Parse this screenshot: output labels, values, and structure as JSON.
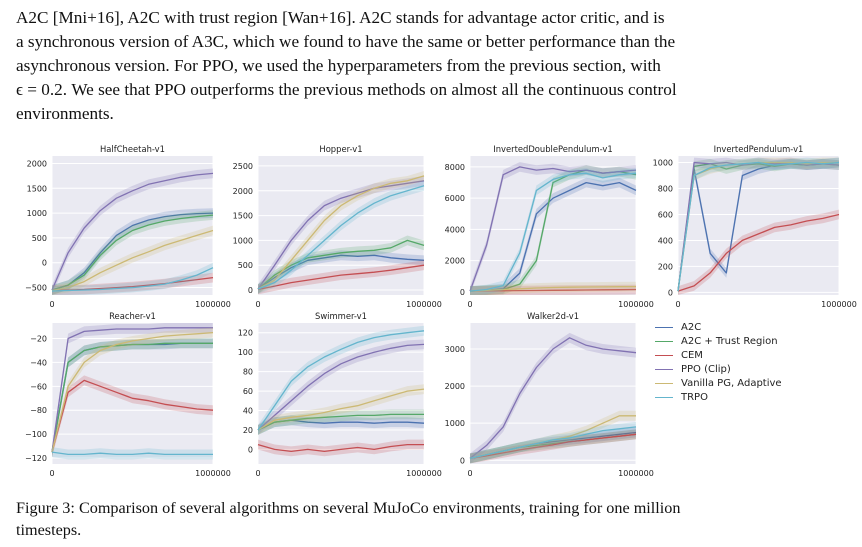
{
  "paragraph": {
    "lines": [
      "A2C [Mni+16], A2C with trust region [Wan+16]. A2C stands for advantage actor critic, and is",
      "a synchronous version of A3C, which we found to have the same or better performance than the",
      "asynchronous version. For PPO, we used the hyperparameters from the previous section, with",
      "ϵ = 0.2. We see that PPO outperforms the previous methods on almost all the continuous control",
      "environments."
    ]
  },
  "caption": {
    "lines": [
      "Figure 3: Comparison of several algorithms on several MuJoCo environments, training for one million",
      "timesteps."
    ]
  },
  "legend": [
    {
      "name": "A2C",
      "color": "#4c72b0"
    },
    {
      "name": "A2C + Trust Region",
      "color": "#55a868"
    },
    {
      "name": "CEM",
      "color": "#c44e52"
    },
    {
      "name": "PPO (Clip)",
      "color": "#8172b2"
    },
    {
      "name": "Vanilla PG, Adaptive",
      "color": "#ccb974"
    },
    {
      "name": "TRPO",
      "color": "#64b5cd"
    }
  ],
  "chart_data": [
    {
      "type": "line",
      "title": "HalfCheetah-v1",
      "x": [
        0,
        100000,
        200000,
        300000,
        400000,
        500000,
        600000,
        700000,
        800000,
        900000,
        1000000
      ],
      "xticks": [
        "0",
        "1000000"
      ],
      "yticks": [
        -500,
        0,
        500,
        1000,
        1500,
        2000
      ],
      "ylim": [
        -650,
        2150
      ],
      "series": [
        {
          "name": "A2C",
          "values": [
            -550,
            -450,
            -200,
            200,
            550,
            750,
            860,
            930,
            970,
            990,
            1000
          ]
        },
        {
          "name": "A2C + Trust Region",
          "values": [
            -550,
            -450,
            -250,
            150,
            450,
            650,
            760,
            840,
            890,
            930,
            960
          ]
        },
        {
          "name": "CEM",
          "values": [
            -560,
            -550,
            -540,
            -520,
            -500,
            -480,
            -450,
            -420,
            -380,
            -340,
            -300
          ]
        },
        {
          "name": "PPO (Clip)",
          "values": [
            -550,
            200,
            700,
            1050,
            1300,
            1450,
            1580,
            1650,
            1720,
            1770,
            1800
          ]
        },
        {
          "name": "Vanilla PG, Adaptive",
          "values": [
            -560,
            -500,
            -380,
            -200,
            -50,
            100,
            220,
            350,
            450,
            550,
            650
          ]
        },
        {
          "name": "TRPO",
          "values": [
            -570,
            -560,
            -550,
            -540,
            -520,
            -500,
            -470,
            -430,
            -350,
            -250,
            -100
          ]
        }
      ]
    },
    {
      "type": "line",
      "title": "Hopper-v1",
      "x": [
        0,
        100000,
        200000,
        300000,
        400000,
        500000,
        600000,
        700000,
        800000,
        900000,
        1000000
      ],
      "xticks": [
        "0",
        "1000000"
      ],
      "yticks": [
        0,
        500,
        1000,
        1500,
        2000,
        2500
      ],
      "ylim": [
        -100,
        2700
      ],
      "series": [
        {
          "name": "A2C",
          "values": [
            20,
            250,
            450,
            600,
            650,
            700,
            680,
            700,
            650,
            620,
            600
          ]
        },
        {
          "name": "A2C + Trust Region",
          "values": [
            20,
            300,
            500,
            650,
            700,
            750,
            780,
            800,
            850,
            1000,
            900
          ]
        },
        {
          "name": "CEM",
          "values": [
            10,
            80,
            150,
            200,
            250,
            300,
            330,
            360,
            400,
            450,
            500
          ]
        },
        {
          "name": "PPO (Clip)",
          "values": [
            20,
            500,
            1000,
            1400,
            1700,
            1850,
            1950,
            2050,
            2100,
            2150,
            2200
          ]
        },
        {
          "name": "Vanilla PG, Adaptive",
          "values": [
            20,
            200,
            600,
            1000,
            1400,
            1700,
            1900,
            2050,
            2150,
            2200,
            2300
          ]
        },
        {
          "name": "TRPO",
          "values": [
            20,
            150,
            400,
            700,
            1000,
            1300,
            1550,
            1750,
            1900,
            2000,
            2100
          ]
        }
      ]
    },
    {
      "type": "line",
      "title": "InvertedDoublePendulum-v1",
      "x": [
        0,
        100000,
        200000,
        300000,
        400000,
        500000,
        600000,
        700000,
        800000,
        900000,
        1000000
      ],
      "xticks": [
        "0",
        "1000000"
      ],
      "yticks": [
        0,
        2000,
        4000,
        6000,
        8000
      ],
      "ylim": [
        -200,
        8700
      ],
      "series": [
        {
          "name": "A2C",
          "values": [
            50,
            100,
            200,
            1200,
            5000,
            6000,
            6500,
            7000,
            6800,
            7000,
            6500
          ]
        },
        {
          "name": "A2C + Trust Region",
          "values": [
            50,
            100,
            150,
            500,
            2000,
            7000,
            7500,
            7800,
            7600,
            7700,
            7500
          ]
        },
        {
          "name": "CEM",
          "values": [
            50,
            60,
            70,
            80,
            90,
            100,
            110,
            120,
            130,
            140,
            150
          ]
        },
        {
          "name": "PPO (Clip)",
          "values": [
            50,
            3000,
            7500,
            8000,
            7800,
            7900,
            7700,
            7800,
            7600,
            7700,
            7800
          ]
        },
        {
          "name": "Vanilla PG, Adaptive",
          "values": [
            50,
            100,
            150,
            200,
            250,
            280,
            300,
            310,
            320,
            330,
            340
          ]
        },
        {
          "name": "TRPO",
          "values": [
            50,
            150,
            400,
            2500,
            6500,
            7200,
            7500,
            7600,
            7300,
            7500,
            7600
          ]
        }
      ]
    },
    {
      "type": "line",
      "title": "InvertedPendulum-v1",
      "x": [
        0,
        100000,
        200000,
        300000,
        400000,
        500000,
        600000,
        700000,
        800000,
        900000,
        1000000
      ],
      "xticks": [
        "0",
        "1000000"
      ],
      "yticks": [
        0,
        200,
        400,
        600,
        800,
        1000
      ],
      "ylim": [
        -20,
        1050
      ],
      "series": [
        {
          "name": "A2C",
          "values": [
            10,
            950,
            300,
            150,
            900,
            950,
            980,
            990,
            980,
            990,
            1000
          ]
        },
        {
          "name": "A2C + Trust Region",
          "values": [
            10,
            970,
            990,
            950,
            980,
            990,
            970,
            990,
            980,
            990,
            980
          ]
        },
        {
          "name": "CEM",
          "values": [
            10,
            50,
            150,
            300,
            400,
            450,
            500,
            520,
            550,
            570,
            600
          ]
        },
        {
          "name": "PPO (Clip)",
          "values": [
            10,
            1000,
            990,
            1000,
            980,
            1000,
            990,
            1000,
            980,
            990,
            980
          ]
        },
        {
          "name": "Vanilla PG, Adaptive",
          "values": [
            10,
            900,
            950,
            980,
            990,
            1000,
            1000,
            1000,
            990,
            1000,
            1000
          ]
        },
        {
          "name": "TRPO",
          "values": [
            10,
            900,
            960,
            980,
            990,
            1000,
            980,
            990,
            1000,
            990,
            1000
          ]
        }
      ]
    },
    {
      "type": "line",
      "title": "Reacher-v1",
      "x": [
        0,
        100000,
        200000,
        300000,
        400000,
        500000,
        600000,
        700000,
        800000,
        900000,
        1000000
      ],
      "xticks": [
        "0",
        "1000000"
      ],
      "yticks": [
        -120,
        -100,
        -80,
        -60,
        -40,
        -20
      ],
      "ylim": [
        -125,
        -7
      ],
      "series": [
        {
          "name": "A2C",
          "values": [
            -115,
            -40,
            -30,
            -27,
            -26,
            -25,
            -25,
            -25,
            -24,
            -24,
            -24
          ]
        },
        {
          "name": "A2C + Trust Region",
          "values": [
            -115,
            -40,
            -30,
            -27,
            -26,
            -25,
            -25,
            -24,
            -24,
            -24,
            -24
          ]
        },
        {
          "name": "CEM",
          "values": [
            -115,
            -65,
            -55,
            -60,
            -65,
            -70,
            -72,
            -75,
            -77,
            -79,
            -80
          ]
        },
        {
          "name": "PPO (Clip)",
          "values": [
            -115,
            -20,
            -14,
            -13,
            -12,
            -12,
            -12,
            -11,
            -11,
            -11,
            -11
          ]
        },
        {
          "name": "Vanilla PG, Adaptive",
          "values": [
            -115,
            -60,
            -40,
            -30,
            -25,
            -22,
            -20,
            -18,
            -17,
            -16,
            -15
          ]
        },
        {
          "name": "TRPO",
          "values": [
            -115,
            -117,
            -117,
            -116,
            -117,
            -117,
            -116,
            -117,
            -117,
            -117,
            -117
          ]
        }
      ]
    },
    {
      "type": "line",
      "title": "Swimmer-v1",
      "x": [
        0,
        100000,
        200000,
        300000,
        400000,
        500000,
        600000,
        700000,
        800000,
        900000,
        1000000
      ],
      "xticks": [
        "0",
        "1000000"
      ],
      "yticks": [
        0,
        20,
        40,
        60,
        80,
        100,
        120
      ],
      "ylim": [
        -15,
        130
      ],
      "series": [
        {
          "name": "A2C",
          "values": [
            20,
            28,
            30,
            28,
            27,
            28,
            28,
            27,
            28,
            28,
            27
          ]
        },
        {
          "name": "A2C + Trust Region",
          "values": [
            20,
            28,
            30,
            32,
            33,
            34,
            35,
            35,
            36,
            36,
            36
          ]
        },
        {
          "name": "CEM",
          "values": [
            5,
            0,
            -2,
            0,
            -2,
            0,
            2,
            0,
            3,
            5,
            5
          ]
        },
        {
          "name": "PPO (Clip)",
          "values": [
            20,
            35,
            50,
            65,
            78,
            88,
            95,
            100,
            104,
            107,
            108
          ]
        },
        {
          "name": "Vanilla PG, Adaptive",
          "values": [
            20,
            30,
            33,
            35,
            38,
            42,
            45,
            50,
            55,
            60,
            62
          ]
        },
        {
          "name": "TRPO",
          "values": [
            20,
            45,
            70,
            85,
            95,
            103,
            110,
            115,
            118,
            120,
            122
          ]
        }
      ]
    },
    {
      "type": "line",
      "title": "Walker2d-v1",
      "x": [
        0,
        100000,
        200000,
        300000,
        400000,
        500000,
        600000,
        700000,
        800000,
        900000,
        1000000
      ],
      "xticks": [
        "0",
        "1000000"
      ],
      "yticks": [
        0,
        1000,
        2000,
        3000
      ],
      "ylim": [
        -100,
        3700
      ],
      "series": [
        {
          "name": "A2C",
          "values": [
            50,
            150,
            250,
            350,
            450,
            500,
            550,
            600,
            650,
            700,
            750
          ]
        },
        {
          "name": "A2C + Trust Region",
          "values": [
            50,
            150,
            250,
            350,
            400,
            450,
            500,
            550,
            600,
            650,
            700
          ]
        },
        {
          "name": "CEM",
          "values": [
            50,
            120,
            200,
            280,
            350,
            420,
            500,
            550,
            600,
            650,
            700
          ]
        },
        {
          "name": "PPO (Clip)",
          "values": [
            50,
            400,
            900,
            1800,
            2500,
            3000,
            3300,
            3100,
            3000,
            2950,
            2900
          ]
        },
        {
          "name": "Vanilla PG, Adaptive",
          "values": [
            50,
            150,
            250,
            350,
            450,
            550,
            650,
            800,
            1000,
            1200,
            1200
          ]
        },
        {
          "name": "TRPO",
          "values": [
            50,
            150,
            250,
            350,
            450,
            550,
            600,
            700,
            800,
            850,
            900
          ]
        }
      ]
    }
  ]
}
